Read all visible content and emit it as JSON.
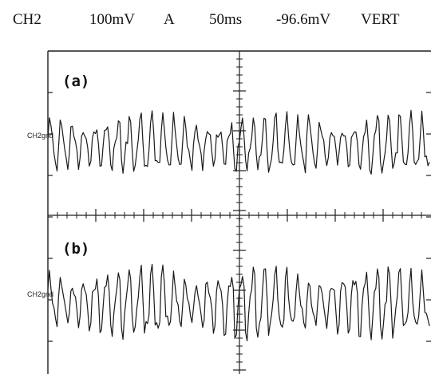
{
  "readout": {
    "channel": "CH2",
    "volts_per_div": "100mV",
    "trigger_source": "A",
    "time_per_div": "50ms",
    "offset": "-96.6mV",
    "mode": "VERT"
  },
  "colors": {
    "trace": "#1a1a1a",
    "graticule": "#1e1e1e",
    "background": "#ffffff"
  },
  "chart_data": [
    {
      "type": "line",
      "title": "(a)",
      "marker_label": "CH2gnd",
      "xlim": [
        0,
        500
      ],
      "ylim": [
        -1,
        1
      ],
      "x_unit": "ms",
      "series": [
        {
          "x_step": 2,
          "y": []
        }
      ]
    },
    {
      "type": "line",
      "title": "(b)",
      "marker_label": "CH2gnd",
      "xlim": [
        0,
        500
      ],
      "ylim": [
        -1,
        1
      ],
      "x_unit": "ms",
      "series": [
        {
          "x_step": 2,
          "y": []
        }
      ]
    }
  ]
}
